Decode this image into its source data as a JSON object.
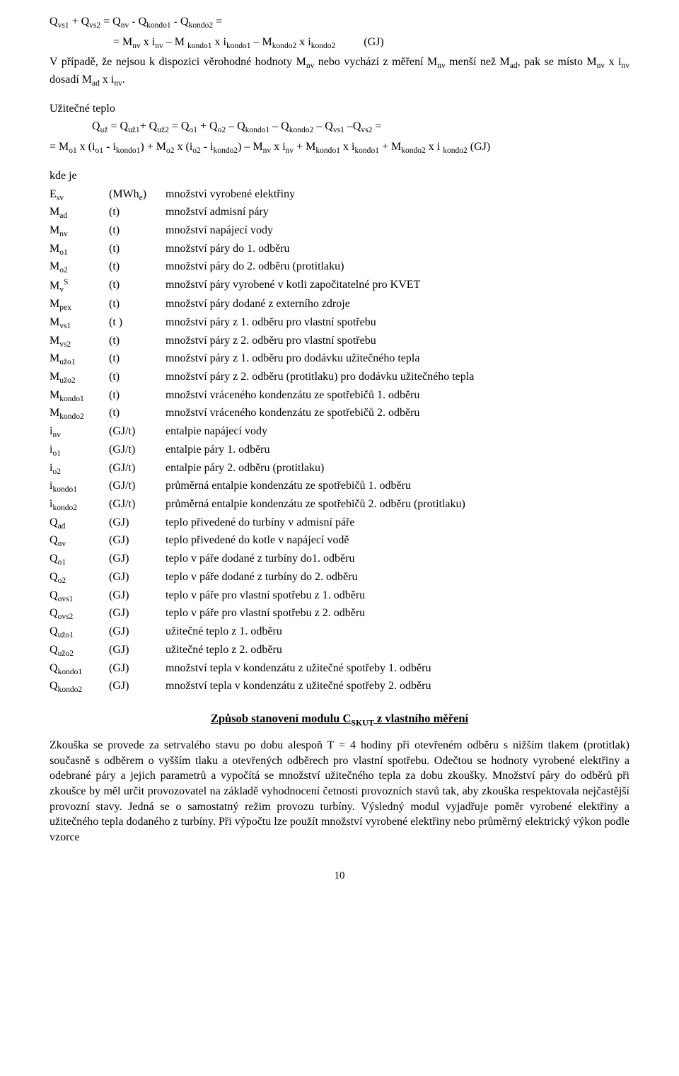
{
  "eq1_line1": "Qvs1 + Qvs2 = Qnv - Qkondo1 - Qkondo2 =",
  "eq1_line2": "= Mnv x inv – M kondo1 x ikondo1 – Mkondo2 x ikondo2          (GJ)",
  "para1": "V případě, že nejsou k dispozici věrohodné hodnoty Mnv nebo vychází z měření Mnv menší než Mad, pak se místo Mnv x inv dosadí Mad x inv.",
  "heading_uz": "Užitečné teplo",
  "eq_uz_line1": "Quž = Quž1+ Quž2 = Qo1 + Qo2 – Qkondo1 – Qkondo2 – Qvs1 –Qvs2 =",
  "eq_uz_line2": "= Mo1 x (io1 - ikondo1) + Mo2 x (io2 - ikondo2) – Mnv x inv + Mkondo1 x ikondo1 + Mkondo2 x i kondo2 (GJ)",
  "kde_je": "kde je",
  "vars": [
    {
      "sym": "E_sv",
      "symHtml": "E<sub>sv</sub>",
      "unit": "(MWh<sub>e</sub>)",
      "desc": "množství vyrobené elektřiny"
    },
    {
      "sym": "M_ad",
      "symHtml": "M<sub>ad</sub>",
      "unit": "(t)",
      "desc": "množství admisní páry"
    },
    {
      "sym": "M_nv",
      "symHtml": "M<sub>nv</sub>",
      "unit": "(t)",
      "desc": "množství napájecí vody"
    },
    {
      "sym": "M_o1",
      "symHtml": "M<sub>o1</sub>",
      "unit": "(t)",
      "desc": "množství páry do 1. odběru"
    },
    {
      "sym": "M_o2",
      "symHtml": "M<sub>o2</sub>",
      "unit": "(t)",
      "desc": "množství páry do 2. odběru (protitlaku)"
    },
    {
      "sym": "M_vS",
      "symHtml": "M<sub>v</sub><sup>S</sup>",
      "unit": "(t)",
      "desc": "množství páry vyrobené v kotli započitatelné pro KVET"
    },
    {
      "sym": "M_pex",
      "symHtml": "M<sub>pex</sub>",
      "unit": "(t)",
      "desc": "množství páry dodané z externího zdroje"
    },
    {
      "sym": "M_vs1",
      "symHtml": "M<sub>vs1</sub>",
      "unit": "(t )",
      "desc": "množství páry z 1. odběru pro vlastní spotřebu"
    },
    {
      "sym": "M_vs2",
      "symHtml": "M<sub>vs2</sub>",
      "unit": "(t)",
      "desc": "množství páry z 2. odběru pro vlastní spotřebu"
    },
    {
      "sym": "M_uzo1",
      "symHtml": "M<sub>užo1</sub>",
      "unit": "(t)",
      "desc": "množství páry z 1. odběru pro dodávku užitečného tepla"
    },
    {
      "sym": "M_uzo2",
      "symHtml": "M<sub>užo2</sub>",
      "unit": "(t)",
      "desc": "množství páry z 2. odběru (protitlaku) pro dodávku užitečného tepla"
    },
    {
      "sym": "M_kondo1",
      "symHtml": "M<sub>kondo1</sub>",
      "unit": "(t)",
      "desc": "množství vráceného kondenzátu ze spotřebičů 1. odběru"
    },
    {
      "sym": "M_kondo2",
      "symHtml": "M<sub>kondo2</sub>",
      "unit": "(t)",
      "desc": "množství vráceného kondenzátu ze spotřebičů  2. odběru"
    },
    {
      "sym": "i_nv",
      "symHtml": "i<sub>nv</sub>",
      "unit": "(GJ/t)",
      "desc": "entalpie napájecí vody"
    },
    {
      "sym": "i_o1",
      "symHtml": "i<sub>o1</sub>",
      "unit": "(GJ/t)",
      "desc": "entalpie páry 1. odběru"
    },
    {
      "sym": "i_o2",
      "symHtml": "i<sub>o2</sub>",
      "unit": "(GJ/t)",
      "desc": "entalpie páry 2. odběru (protitlaku)"
    },
    {
      "sym": "i_kondo1",
      "symHtml": "i<sub>kondo1</sub>",
      "unit": "(GJ/t)",
      "desc": "průměrná entalpie kondenzátu ze spotřebičů 1. odběru"
    },
    {
      "sym": "i_kondo2",
      "symHtml": "i<sub>kondo2</sub>",
      "unit": "(GJ/t)",
      "desc": "průměrná entalpie kondenzátu ze spotřebičů 2. odběru (protitlaku)"
    },
    {
      "sym": "Q_ad",
      "symHtml": "Q<sub>ad</sub>",
      "unit": "(GJ)",
      "desc": "teplo přivedené do turbíny v admisní páře"
    },
    {
      "sym": "Q_nv",
      "symHtml": "Q<sub>nv</sub>",
      "unit": "(GJ)",
      "desc": "teplo přivedené do kotle v napájecí vodě"
    },
    {
      "sym": "Q_o1",
      "symHtml": "Q<sub>o1</sub>",
      "unit": "(GJ)",
      "desc": "teplo v páře dodané z turbíny do1. odběru"
    },
    {
      "sym": "Q_o2",
      "symHtml": "Q<sub>o2</sub>",
      "unit": "(GJ)",
      "desc": "teplo v páře dodané z turbíny do 2. odběru"
    },
    {
      "sym": "Q_ovs1",
      "symHtml": "Q<sub>ovs1</sub>",
      "unit": "(GJ)",
      "desc": "teplo v páře pro vlastní spotřebu z 1. odběru"
    },
    {
      "sym": "Q_ovs2",
      "symHtml": "Q<sub>ovs2</sub>",
      "unit": "(GJ)",
      "desc": "teplo v páře pro vlastní spotřebu z 2. odběru"
    },
    {
      "sym": "Q_uzo1",
      "symHtml": "Q<sub>užo1</sub>",
      "unit": "(GJ)",
      "desc": "užitečné teplo z 1. odběru"
    },
    {
      "sym": "Q_uzo2",
      "symHtml": "Q<sub>užo2</sub>",
      "unit": "(GJ)",
      "desc": "užitečné teplo z 2. odběru"
    },
    {
      "sym": "Q_kondo1",
      "symHtml": "Q<sub>kondo1</sub>",
      "unit": "(GJ)",
      "desc": "množství tepla v kondenzátu z užitečné spotřeby 1. odběru"
    },
    {
      "sym": "Q_kondo2",
      "symHtml": "Q<sub>kondo2</sub>",
      "unit": "(GJ)",
      "desc": "množství tepla v kondenzátu z užitečné spotřeby 2. odběru"
    }
  ],
  "subheading": "Způsob stanovení modulu CSKUT z vlastního měření",
  "para2": "Zkouška se provede za setrvalého stavu po dobu alespoň T = 4 hodiny při otevřeném odběru s nižším tlakem (protitlak) současně s odběrem o vyšším tlaku a otevřených odběrech pro vlastní spotřebu. Odečtou se hodnoty vyrobené elektřiny a odebrané páry a jejich parametrů a vypočítá se množství užitečného tepla za dobu zkoušky. Množství páry do odběrů při zkoušce by měl určit provozovatel na základě vyhodnocení četnosti provozních stavů tak, aby zkouška respektovala nejčastější provozní stavy. Jedná se o samostatný režim provozu turbíny. Výsledný modul vyjadřuje poměr vyrobené elektřiny a užitečného tepla dodaného z turbíny. Při výpočtu lze použít množství vyrobené elektřiny nebo průměrný elektrický výkon podle vzorce",
  "pagenum": "10"
}
